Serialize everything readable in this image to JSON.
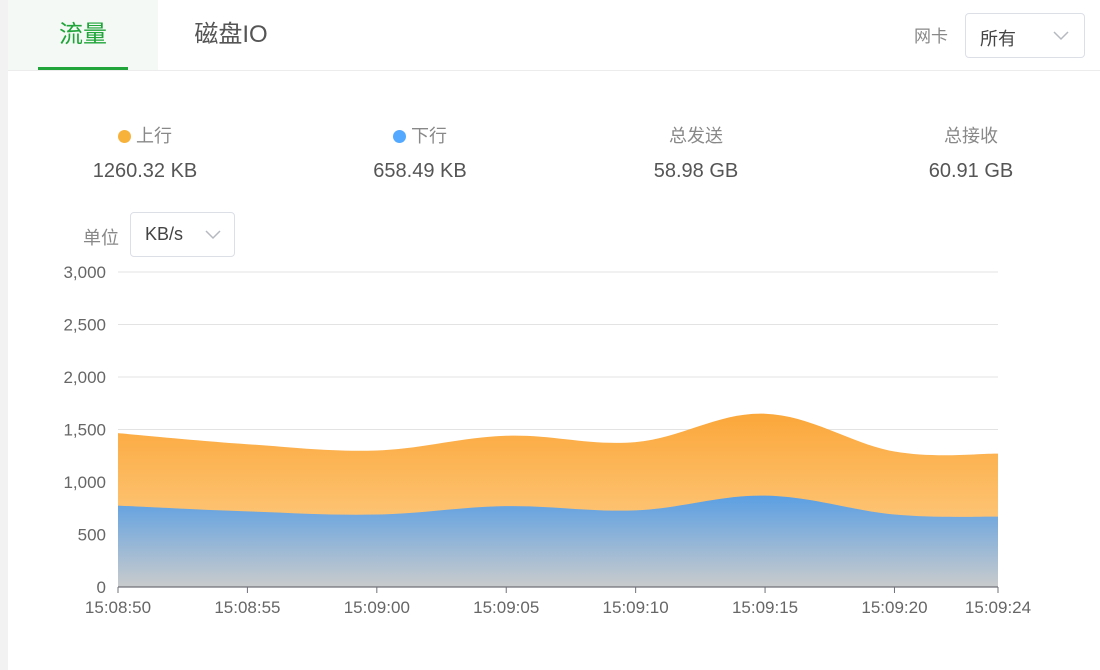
{
  "tabs": [
    {
      "label": "流量",
      "active": true
    },
    {
      "label": "磁盘IO",
      "active": false
    }
  ],
  "nic": {
    "label": "网卡",
    "selected": "所有",
    "icon": "chevron-down-icon"
  },
  "stats": {
    "upload": {
      "label": "上行",
      "value": "1260.32 KB",
      "color": "#f7b23b"
    },
    "download": {
      "label": "下行",
      "value": "658.49 KB",
      "color": "#52a9ff"
    },
    "total_sent": {
      "label": "总发送",
      "value": "58.98 GB"
    },
    "total_received": {
      "label": "总接收",
      "value": "60.91 GB"
    }
  },
  "unit": {
    "label": "单位",
    "selected": "KB/s",
    "icon": "chevron-down-icon"
  },
  "colors": {
    "accent": "#20a53a",
    "upload": "#f7b23b",
    "download": "#52a9ff"
  },
  "chart_data": {
    "type": "area",
    "x": [
      "15:08:50",
      "15:08:55",
      "15:09:00",
      "15:09:05",
      "15:09:10",
      "15:09:15",
      "15:09:20",
      "15:09:24"
    ],
    "series": [
      {
        "name": "下行",
        "values": [
          775,
          720,
          690,
          770,
          730,
          870,
          690,
          670
        ]
      },
      {
        "name": "上行",
        "values": [
          690,
          640,
          610,
          670,
          650,
          780,
          600,
          600
        ]
      }
    ],
    "stacked": true,
    "ylim": [
      0,
      3000
    ],
    "yticks": [
      "0",
      "500",
      "1,000",
      "1,500",
      "2,000",
      "2,500",
      "3,000"
    ],
    "ytick_values": [
      0,
      500,
      1000,
      1500,
      2000,
      2500,
      3000
    ],
    "grid": true
  }
}
